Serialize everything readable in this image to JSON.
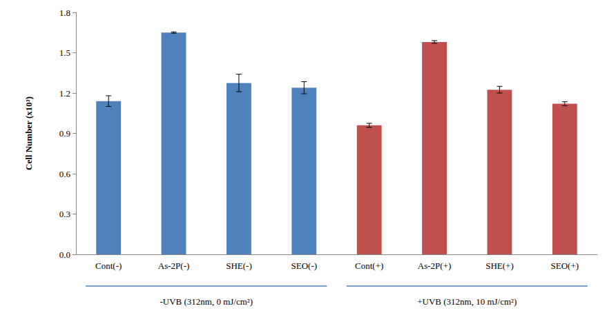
{
  "chart_data": {
    "type": "bar",
    "y_label": "Cell Number (x10³)",
    "categories": [
      "Cont(-)",
      "As-2P(-)",
      "SHE(-)",
      "SEO(-)",
      "Cont(+)",
      "As-2P(+)",
      "SHE(+)",
      "SEO(+)"
    ],
    "values": [
      1.14,
      1.65,
      1.275,
      1.24,
      0.96,
      1.58,
      1.225,
      1.12
    ],
    "errors": [
      0.04,
      0.005,
      0.065,
      0.045,
      0.015,
      0.01,
      0.025,
      0.015
    ],
    "colors": [
      "#4f81bd",
      "#4f81bd",
      "#4f81bd",
      "#4f81bd",
      "#c0504d",
      "#c0504d",
      "#c0504d",
      "#c0504d"
    ],
    "annotations": [
      "-UVB (312nm, 0 mJ/cm²)",
      "+UVB (312nm, 10 mJ/cm²)"
    ],
    "ylim": [
      0,
      1.8
    ],
    "yticks": [
      {
        "value": 0,
        "label": "0.0"
      },
      0.3,
      0.6,
      0.9,
      1.2,
      1.5,
      1.8
    ],
    "grid": false
  }
}
